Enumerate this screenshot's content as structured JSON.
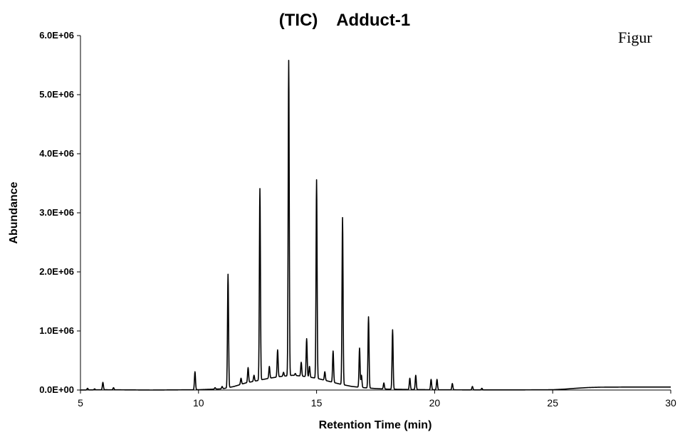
{
  "side_text": "Figur",
  "chart_data": {
    "type": "line",
    "title": "(TIC)    Adduct-1",
    "xlabel": "Retention Time (min)",
    "ylabel": "Abundance",
    "xlim": [
      5,
      30
    ],
    "ylim": [
      0,
      6000000
    ],
    "x_ticks": [
      5,
      10,
      15,
      20,
      25,
      30
    ],
    "x_tick_labels": [
      "5",
      "10",
      "15",
      "20",
      "25",
      "30"
    ],
    "y_ticks": [
      0,
      1000000,
      2000000,
      3000000,
      4000000,
      5000000,
      6000000
    ],
    "y_tick_labels": [
      "0.0E+00",
      "1.0E+06",
      "2.0E+06",
      "3.0E+06",
      "4.0E+06",
      "5.0E+06",
      "6.0E+06"
    ],
    "grid": false,
    "series": [
      {
        "color": "#000000",
        "baseline": [
          [
            5.0,
            0
          ],
          [
            6.0,
            5000
          ],
          [
            8.0,
            0
          ],
          [
            10.0,
            5000
          ],
          [
            11.0,
            20000
          ],
          [
            11.5,
            60000
          ],
          [
            12.0,
            120000
          ],
          [
            12.5,
            160000
          ],
          [
            13.0,
            200000
          ],
          [
            13.5,
            230000
          ],
          [
            14.0,
            250000
          ],
          [
            14.5,
            230000
          ],
          [
            15.0,
            200000
          ],
          [
            15.5,
            150000
          ],
          [
            16.0,
            100000
          ],
          [
            16.5,
            60000
          ],
          [
            17.0,
            40000
          ],
          [
            17.5,
            25000
          ],
          [
            18.0,
            15000
          ],
          [
            19.0,
            8000
          ],
          [
            20.0,
            5000
          ],
          [
            21.0,
            3000
          ],
          [
            22.0,
            2000
          ],
          [
            23.0,
            2000
          ],
          [
            24.0,
            3000
          ],
          [
            25.0,
            5000
          ],
          [
            25.5,
            15000
          ],
          [
            26.0,
            30000
          ],
          [
            26.5,
            42000
          ],
          [
            27.0,
            48000
          ],
          [
            28.0,
            50000
          ],
          [
            29.0,
            50000
          ],
          [
            30.0,
            50000
          ]
        ],
        "peaks": [
          [
            5.3,
            30000
          ],
          [
            5.6,
            20000
          ],
          [
            5.95,
            130000
          ],
          [
            6.4,
            40000
          ],
          [
            9.85,
            310000
          ],
          [
            10.7,
            40000
          ],
          [
            11.0,
            60000
          ],
          [
            11.25,
            1960000
          ],
          [
            11.8,
            200000
          ],
          [
            12.1,
            380000
          ],
          [
            12.35,
            250000
          ],
          [
            12.6,
            3410000
          ],
          [
            13.0,
            400000
          ],
          [
            13.35,
            680000
          ],
          [
            13.6,
            300000
          ],
          [
            13.82,
            5580000
          ],
          [
            14.1,
            280000
          ],
          [
            14.35,
            470000
          ],
          [
            14.58,
            870000
          ],
          [
            14.7,
            400000
          ],
          [
            15.0,
            3560000
          ],
          [
            15.35,
            310000
          ],
          [
            15.7,
            660000
          ],
          [
            16.1,
            2920000
          ],
          [
            16.82,
            710000
          ],
          [
            16.9,
            250000
          ],
          [
            17.2,
            1240000
          ],
          [
            17.85,
            120000
          ],
          [
            18.22,
            1020000
          ],
          [
            18.95,
            200000
          ],
          [
            19.2,
            250000
          ],
          [
            19.85,
            180000
          ],
          [
            20.1,
            180000
          ],
          [
            20.75,
            110000
          ],
          [
            21.6,
            60000
          ],
          [
            22.0,
            30000
          ]
        ]
      }
    ]
  }
}
